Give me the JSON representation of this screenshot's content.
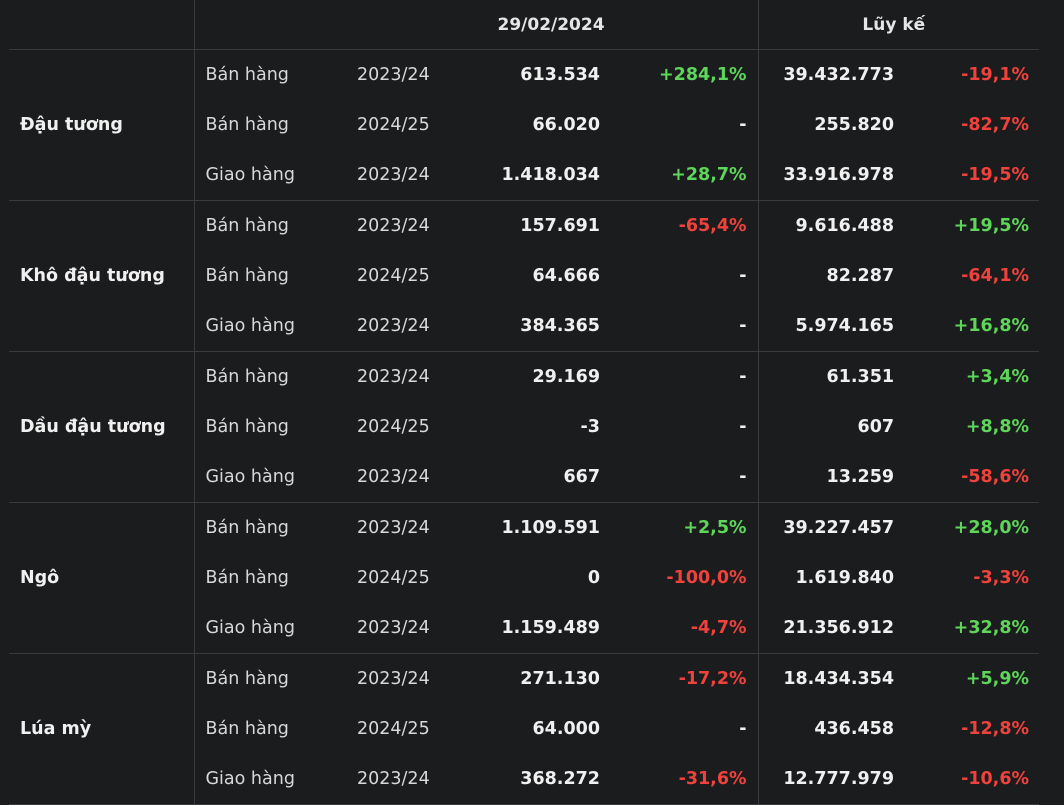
{
  "header": {
    "date_label": "29/02/2024",
    "cumulative_label": "Lũy kế"
  },
  "colors": {
    "background": "#1b1c1e",
    "positive": "#5ed65a",
    "negative": "#f0423c"
  },
  "groups": [
    {
      "product": "Đậu tương",
      "rows": [
        {
          "type": "Bán hàng",
          "year": "2023/24",
          "value": "613.534",
          "change": "+284,1%",
          "change_sign": "pos",
          "cumulative": "39.432.773",
          "cum_change": "-19,1%",
          "cum_sign": "neg"
        },
        {
          "type": "Bán hàng",
          "year": "2024/25",
          "value": "66.020",
          "change": "-",
          "change_sign": "neu",
          "cumulative": "255.820",
          "cum_change": "-82,7%",
          "cum_sign": "neg"
        },
        {
          "type": "Giao hàng",
          "year": "2023/24",
          "value": "1.418.034",
          "change": "+28,7%",
          "change_sign": "pos",
          "cumulative": "33.916.978",
          "cum_change": "-19,5%",
          "cum_sign": "neg"
        }
      ]
    },
    {
      "product": "Khô đậu tương",
      "rows": [
        {
          "type": "Bán hàng",
          "year": "2023/24",
          "value": "157.691",
          "change": "-65,4%",
          "change_sign": "neg",
          "cumulative": "9.616.488",
          "cum_change": "+19,5%",
          "cum_sign": "pos"
        },
        {
          "type": "Bán hàng",
          "year": "2024/25",
          "value": "64.666",
          "change": "-",
          "change_sign": "neu",
          "cumulative": "82.287",
          "cum_change": "-64,1%",
          "cum_sign": "neg"
        },
        {
          "type": "Giao hàng",
          "year": "2023/24",
          "value": "384.365",
          "change": "-",
          "change_sign": "neu",
          "cumulative": "5.974.165",
          "cum_change": "+16,8%",
          "cum_sign": "pos"
        }
      ]
    },
    {
      "product": "Dầu đậu tương",
      "rows": [
        {
          "type": "Bán hàng",
          "year": "2023/24",
          "value": "29.169",
          "change": "-",
          "change_sign": "neu",
          "cumulative": "61.351",
          "cum_change": "+3,4%",
          "cum_sign": "pos"
        },
        {
          "type": "Bán hàng",
          "year": "2024/25",
          "value": "-3",
          "change": "-",
          "change_sign": "neu",
          "cumulative": "607",
          "cum_change": "+8,8%",
          "cum_sign": "pos"
        },
        {
          "type": "Giao hàng",
          "year": "2023/24",
          "value": "667",
          "change": "-",
          "change_sign": "neu",
          "cumulative": "13.259",
          "cum_change": "-58,6%",
          "cum_sign": "neg"
        }
      ]
    },
    {
      "product": "Ngô",
      "rows": [
        {
          "type": "Bán hàng",
          "year": "2023/24",
          "value": "1.109.591",
          "change": "+2,5%",
          "change_sign": "pos",
          "cumulative": "39.227.457",
          "cum_change": "+28,0%",
          "cum_sign": "pos"
        },
        {
          "type": "Bán hàng",
          "year": "2024/25",
          "value": "0",
          "change": "-100,0%",
          "change_sign": "neg",
          "cumulative": "1.619.840",
          "cum_change": "-3,3%",
          "cum_sign": "neg"
        },
        {
          "type": "Giao hàng",
          "year": "2023/24",
          "value": "1.159.489",
          "change": "-4,7%",
          "change_sign": "neg",
          "cumulative": "21.356.912",
          "cum_change": "+32,8%",
          "cum_sign": "pos"
        }
      ]
    },
    {
      "product": "Lúa mỳ",
      "rows": [
        {
          "type": "Bán hàng",
          "year": "2023/24",
          "value": "271.130",
          "change": "-17,2%",
          "change_sign": "neg",
          "cumulative": "18.434.354",
          "cum_change": "+5,9%",
          "cum_sign": "pos"
        },
        {
          "type": "Bán hàng",
          "year": "2024/25",
          "value": "64.000",
          "change": "-",
          "change_sign": "neu",
          "cumulative": "436.458",
          "cum_change": "-12,8%",
          "cum_sign": "neg"
        },
        {
          "type": "Giao hàng",
          "year": "2023/24",
          "value": "368.272",
          "change": "-31,6%",
          "change_sign": "neg",
          "cumulative": "12.777.979",
          "cum_change": "-10,6%",
          "cum_sign": "neg"
        }
      ]
    }
  ]
}
